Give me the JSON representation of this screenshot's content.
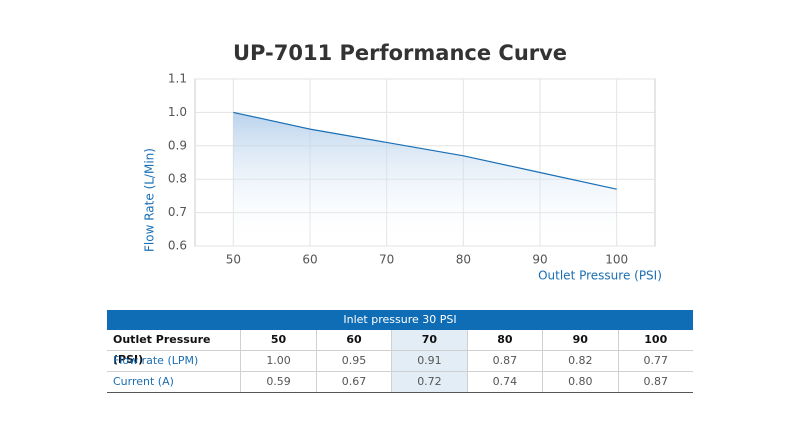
{
  "chart_data": {
    "type": "line",
    "title": "UP-7011 Performance Curve",
    "x_label": "Outlet Pressure (PSI)",
    "y_label": "Flow Rate (L/Min)",
    "x": [
      50,
      60,
      70,
      80,
      90,
      100
    ],
    "values": [
      1.0,
      0.95,
      0.91,
      0.87,
      0.82,
      0.77
    ],
    "color": "#1a6fb5",
    "xlim": [
      45,
      105
    ],
    "xticks": [
      50,
      60,
      70,
      80,
      90,
      100
    ],
    "ylim": [
      0.6,
      1.1
    ],
    "yticks": [
      0.6,
      0.7,
      0.8,
      0.9,
      {
        "value": 1,
        "label": "1.0"
      },
      1.1
    ],
    "grid": true
  },
  "table": {
    "title": "Inlet pressure 30 PSI",
    "rows": [
      [
        "Outlet Pressure (PSI)",
        "50",
        "60",
        "70",
        "80",
        "90",
        "100"
      ],
      [
        "Flow rate (LPM)",
        "1.00",
        "0.95",
        "0.91",
        "0.87",
        "0.82",
        "0.77"
      ],
      [
        "Current (A)",
        "0.59",
        "0.67",
        "0.72",
        "0.74",
        "0.80",
        "0.87"
      ]
    ]
  }
}
